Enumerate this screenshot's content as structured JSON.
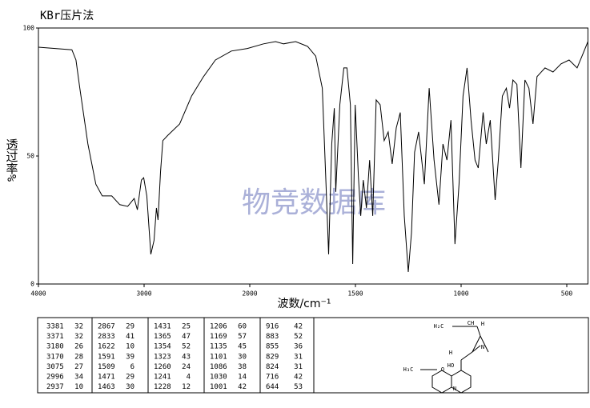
{
  "chart_data": {
    "type": "line",
    "title": "KBr压片法",
    "y_label": "透过率%",
    "x_label": "波数/cm⁻¹",
    "watermark": "物竞数据库",
    "xlim": [
      4000,
      400
    ],
    "xticks": [
      4000,
      3000,
      2000,
      1500,
      1000,
      500
    ],
    "ylim": [
      0,
      100
    ],
    "yticks": [
      0,
      50,
      100
    ],
    "x": [
      4000,
      3683,
      3645,
      3608,
      3532,
      3457,
      3396,
      3306,
      3230,
      3155,
      3094,
      3064,
      3026,
      3004,
      2974,
      2936,
      2906,
      2883,
      2868,
      2845,
      2823,
      2777,
      2664,
      2551,
      2438,
      2325,
      2174,
      2023,
      1935,
      1878,
      1840,
      1783,
      1726,
      1688,
      1657,
      1638,
      1627,
      1612,
      1600,
      1593,
      1574,
      1555,
      1540,
      1524,
      1513,
      1501,
      1486,
      1475,
      1463,
      1448,
      1433,
      1418,
      1402,
      1383,
      1364,
      1345,
      1326,
      1307,
      1288,
      1269,
      1250,
      1235,
      1220,
      1201,
      1174,
      1151,
      1128,
      1105,
      1086,
      1067,
      1048,
      1029,
      1010,
      991,
      972,
      953,
      934,
      919,
      896,
      881,
      862,
      839,
      824,
      805,
      786,
      771,
      755,
      736,
      717,
      698,
      679,
      660,
      641,
      603,
      565,
      527,
      489,
      451,
      420,
      400
    ],
    "series": [
      {
        "color": "#000000",
        "values": [
          92.5,
          91.5,
          87.5,
          76.5,
          54.7,
          39,
          34.4,
          34.4,
          31,
          30.3,
          33.4,
          29,
          40.6,
          41.5,
          34.4,
          11.6,
          17,
          29.7,
          25,
          43.7,
          56,
          58,
          62.5,
          73.4,
          81,
          87.5,
          91,
          92,
          93.8,
          94.7,
          93.8,
          94.7,
          92.8,
          89,
          76.5,
          36,
          11.6,
          54.7,
          68.7,
          36,
          70,
          84.4,
          84.4,
          70,
          7.8,
          70,
          42,
          26.6,
          40.6,
          29.7,
          48.4,
          26.6,
          71.9,
          70,
          56,
          59.4,
          46.9,
          61,
          67,
          26.6,
          4.7,
          20,
          51.5,
          59.4,
          39,
          76.5,
          48.4,
          31,
          54.7,
          48.4,
          64,
          15.6,
          39,
          73.4,
          84.4,
          64,
          48.4,
          45.3,
          67,
          54.7,
          64,
          32.8,
          48.4,
          73.4,
          76.5,
          68.7,
          79.7,
          78,
          45.3,
          79.7,
          76.5,
          62.5,
          81,
          84.4,
          82.8,
          86,
          87.5,
          84.4,
          90.6,
          94.7
        ]
      }
    ]
  },
  "peak_table": [
    [
      [
        3381,
        32
      ],
      [
        3371,
        32
      ],
      [
        3180,
        26
      ],
      [
        3170,
        28
      ],
      [
        3075,
        27
      ],
      [
        2996,
        34
      ],
      [
        2937,
        10
      ]
    ],
    [
      [
        2867,
        29
      ],
      [
        2833,
        41
      ],
      [
        1622,
        10
      ],
      [
        1591,
        39
      ],
      [
        1509,
        6
      ],
      [
        1471,
        29
      ],
      [
        1463,
        30
      ]
    ],
    [
      [
        1431,
        25
      ],
      [
        1365,
        47
      ],
      [
        1354,
        52
      ],
      [
        1323,
        43
      ],
      [
        1260,
        24
      ],
      [
        1241,
        4
      ],
      [
        1228,
        12
      ]
    ],
    [
      [
        1206,
        60
      ],
      [
        1169,
        57
      ],
      [
        1135,
        45
      ],
      [
        1101,
        30
      ],
      [
        1086,
        38
      ],
      [
        1030,
        14
      ],
      [
        1001,
        42
      ]
    ],
    [
      [
        916,
        42
      ],
      [
        883,
        52
      ],
      [
        855,
        36
      ],
      [
        829,
        31
      ],
      [
        824,
        31
      ],
      [
        716,
        42
      ],
      [
        644,
        53
      ]
    ]
  ],
  "structure_labels": [
    "H₂C",
    "CH",
    "H",
    "H",
    "N",
    "HO",
    "H₃C",
    "O",
    "N"
  ]
}
